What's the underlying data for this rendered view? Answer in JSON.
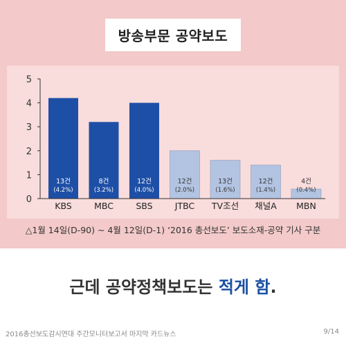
{
  "header": {
    "title": "방송부문 공약보도"
  },
  "chart_data": {
    "type": "bar",
    "categories": [
      "KBS",
      "MBC",
      "SBS",
      "JTBC",
      "TV조선",
      "채널A",
      "MBN"
    ],
    "values": [
      4.2,
      3.2,
      4.0,
      2.0,
      1.6,
      1.4,
      0.4
    ],
    "data_labels": [
      [
        "13건",
        "(4.2%)"
      ],
      [
        "8건",
        "(3.2%)"
      ],
      [
        "12건",
        "(4.0%)"
      ],
      [
        "12건",
        "(2.0%)"
      ],
      [
        "13건",
        "(1.6%)"
      ],
      [
        "12건",
        "(1.4%)"
      ],
      [
        "4건",
        "(0.4%)"
      ]
    ],
    "yticks": [
      0,
      1,
      2,
      3,
      4,
      5
    ],
    "ylim": [
      0,
      5
    ],
    "colors": {
      "terrestrial": "#1e4fa6",
      "cable": "#b3c4e2",
      "terrestrial_count": 3
    }
  },
  "caption": "△1월 14일(D-90) ~ 4월 12일(D-1) ‘2016 총선보도’ 보도소재-공약 기사 구분",
  "headline": {
    "prefix": "근데 공약정책보도는 ",
    "highlight": "적게 함",
    "suffix": "."
  },
  "footer": {
    "left": "2016총선보도감시연대 주간모니터보고서 마지막 카드뉴스",
    "right": "9/14"
  }
}
